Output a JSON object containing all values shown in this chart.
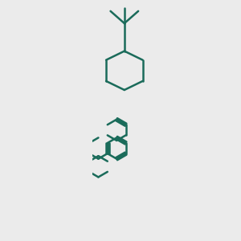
{
  "bg_color": "#ebebeb",
  "bond_color": "#1a6b5a",
  "oxygen_color": "#cc0000",
  "bond_width": 1.8,
  "fig_width": 3.0,
  "fig_height": 3.0,
  "dpi": 100
}
